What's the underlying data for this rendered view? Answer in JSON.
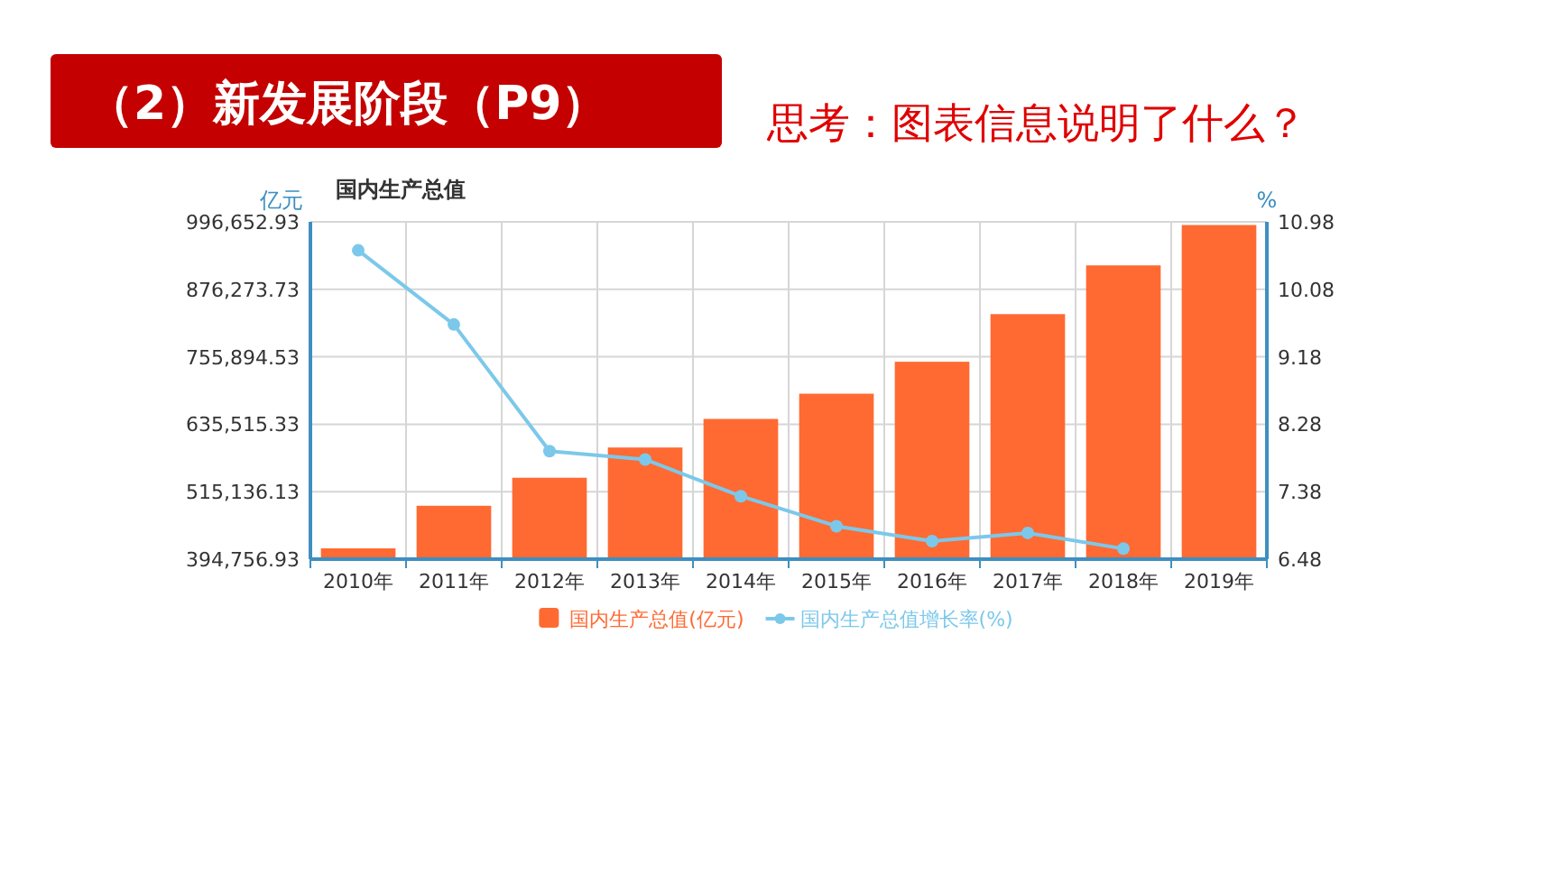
{
  "chart_data": {
    "type": "bar",
    "title": "国内生产总值",
    "ylabel": "亿元",
    "y2label": "%",
    "annotations": [
      "（2）新发展阶段（P9）",
      "思考：图表信息说明了什么？"
    ],
    "categories": [
      "2010年",
      "2011年",
      "2012年",
      "2013年",
      "2014年",
      "2015年",
      "2016年",
      "2017年",
      "2018年",
      "2019年"
    ],
    "series": [
      {
        "name": "国内生产总值(亿元)",
        "type": "bar",
        "color": "#ff6a33",
        "values": [
          414000,
          490000,
          540000,
          594000,
          645000,
          690000,
          747000,
          832000,
          919000,
          991000
        ]
      },
      {
        "name": "国内生产总值增长率(%)",
        "type": "line",
        "axis": "y2",
        "color": "#7cc8ea",
        "marker": "circle",
        "values": [
          10.6,
          9.61,
          7.92,
          7.81,
          7.32,
          6.92,
          6.72,
          6.83,
          6.62,
          null
        ]
      }
    ],
    "ylim": [
      394756.93,
      996652.93
    ],
    "yticks": [
      {
        "value": 394756.93,
        "label": "394,756.93"
      },
      {
        "value": 515136.13,
        "label": "515,136.13"
      },
      {
        "value": 635515.33,
        "label": "635,515.33"
      },
      {
        "value": 755894.53,
        "label": "755,894.53"
      },
      {
        "value": 876273.73,
        "label": "876,273.73"
      },
      {
        "value": 996652.93,
        "label": "996,652.93"
      }
    ],
    "y2lim": [
      6.48,
      10.98
    ],
    "y2ticks": [
      6.48,
      7.38,
      8.28,
      9.18,
      10.08,
      10.98
    ],
    "grid": true,
    "legend": "bottom"
  }
}
